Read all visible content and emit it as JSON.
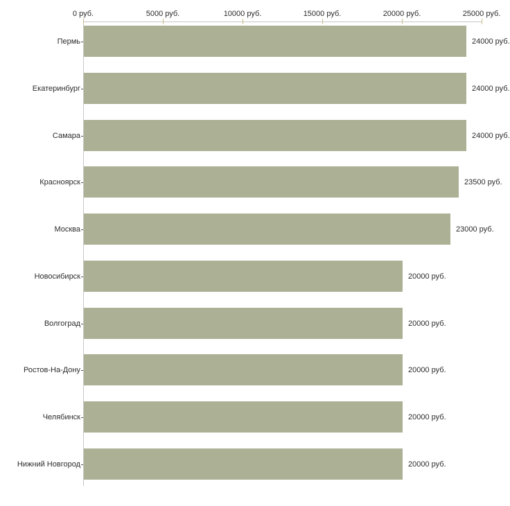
{
  "chart_data": {
    "type": "bar",
    "orientation": "horizontal",
    "title": "",
    "xlabel": "",
    "ylabel": "",
    "grid": false,
    "legend": false,
    "categories": [
      "Пермь",
      "Екатеринбург",
      "Самара",
      "Красноярск",
      "Москва",
      "Новосибирск",
      "Волгоград",
      "Ростов-На-Дону",
      "Челябинск",
      "Нижний Новгород"
    ],
    "values": [
      24000,
      24000,
      24000,
      23500,
      23000,
      20000,
      20000,
      20000,
      20000,
      20000
    ],
    "value_labels": [
      "24000 руб.",
      "24000 руб.",
      "24000 руб.",
      "23500 руб.",
      "23000 руб.",
      "20000 руб.",
      "20000 руб.",
      "20000 руб.",
      "20000 руб.",
      "20000 руб."
    ],
    "axis": {
      "position": "top",
      "min": 0,
      "max": 25000,
      "tick_interval": 5000,
      "tick_labels": [
        "0 руб.",
        "5000 руб.",
        "10000 руб.",
        "15000 руб.",
        "20000 руб.",
        "25000 руб."
      ]
    },
    "colors": {
      "bar": "#acb195",
      "axis_line": "#c6c6c6",
      "value_tick": "#c9bd8b",
      "category_tick": "#4d4d4d",
      "text": "#2b2b2b",
      "background": "#ffffff"
    }
  }
}
